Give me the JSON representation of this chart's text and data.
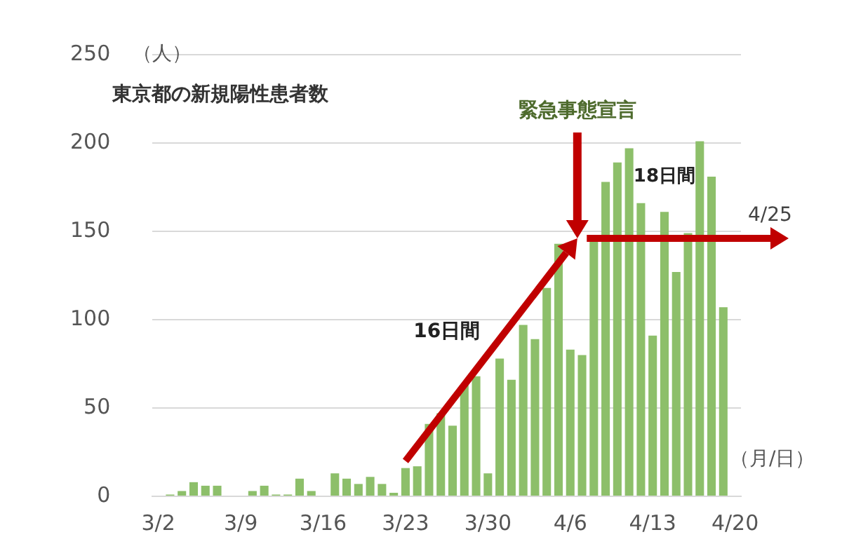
{
  "chart_data": {
    "type": "bar",
    "title": "東京都の新規陽性患者数",
    "ylabel": "（人）",
    "xlabel": "（月/日）",
    "categories": [
      "3/2",
      null,
      null,
      null,
      null,
      null,
      null,
      "3/9",
      null,
      null,
      null,
      null,
      null,
      null,
      "3/16",
      null,
      null,
      null,
      null,
      null,
      null,
      "3/23",
      null,
      null,
      null,
      null,
      null,
      null,
      "3/30",
      null,
      null,
      null,
      null,
      null,
      null,
      "4/6",
      null,
      null,
      null,
      null,
      null,
      null,
      "4/13",
      null,
      null,
      null,
      null,
      null,
      null,
      "4/20"
    ],
    "values": [
      0,
      1,
      3,
      8,
      6,
      6,
      0,
      0,
      3,
      6,
      1,
      1,
      10,
      3,
      0,
      13,
      10,
      7,
      11,
      7,
      2,
      16,
      17,
      41,
      47,
      40,
      63,
      68,
      13,
      78,
      66,
      97,
      89,
      118,
      143,
      83,
      80,
      144,
      178,
      189,
      197,
      166,
      91,
      161,
      127,
      149,
      201,
      181,
      107,
      null
    ],
    "color": "#8dbf6a",
    "ylim": [
      0,
      250
    ],
    "yticks": [
      0,
      50,
      100,
      150,
      200,
      250
    ],
    "grid": "y",
    "annotations": [
      "16日間",
      "緊急事態宣言",
      "18日間",
      "4/25"
    ]
  }
}
